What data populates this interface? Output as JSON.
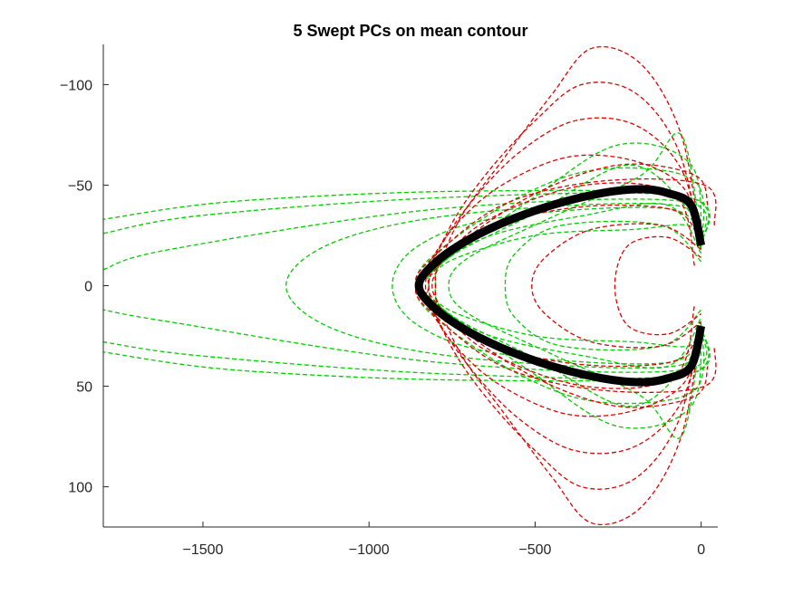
{
  "chart_data": {
    "type": "line",
    "title": "5 Swept PCs on mean contour",
    "xlabel": "",
    "ylabel": "",
    "xlim": [
      -1800,
      50
    ],
    "ylim": [
      -120,
      120
    ],
    "y_reversed": true,
    "grid": false,
    "x_ticks": [
      -1500,
      -1000,
      -500,
      0
    ],
    "x_tick_labels": [
      "−1500",
      "−1000",
      "−500",
      "0"
    ],
    "y_ticks": [
      -100,
      -50,
      0,
      50,
      100
    ],
    "y_tick_labels": [
      "−100",
      "−50",
      "0",
      "50",
      "100"
    ],
    "mean_contour": {
      "color": "#000000",
      "points": [
        [
          0,
          -20
        ],
        [
          -30,
          -40
        ],
        [
          -100,
          -46
        ],
        [
          -180,
          -48
        ],
        [
          -300,
          -46
        ],
        [
          -450,
          -40
        ],
        [
          -600,
          -31
        ],
        [
          -720,
          -21
        ],
        [
          -810,
          -10
        ],
        [
          -850,
          0
        ],
        [
          -810,
          10
        ],
        [
          -720,
          21
        ],
        [
          -600,
          31
        ],
        [
          -450,
          40
        ],
        [
          -300,
          46
        ],
        [
          -180,
          48
        ],
        [
          -100,
          46
        ],
        [
          -30,
          40
        ],
        [
          0,
          20
        ]
      ]
    },
    "series": [
      {
        "color": "#00cc00",
        "points": [
          [
            0,
            -20
          ],
          [
            -40,
            -44
          ],
          [
            -700,
            -47
          ],
          [
            -1400,
            -42
          ],
          [
            -1800,
            -33
          ]
        ]
      },
      {
        "color": "#00cc00",
        "points": [
          [
            0,
            20
          ],
          [
            -40,
            44
          ],
          [
            -700,
            47
          ],
          [
            -1400,
            42
          ],
          [
            -1800,
            33
          ]
        ]
      },
      {
        "color": "#00cc00",
        "points": [
          [
            0,
            -20
          ],
          [
            -40,
            -44
          ],
          [
            -750,
            -44
          ],
          [
            -1500,
            -35
          ],
          [
            -1800,
            -26
          ]
        ]
      },
      {
        "color": "#00cc00",
        "points": [
          [
            0,
            20
          ],
          [
            -40,
            44
          ],
          [
            -750,
            44
          ],
          [
            -1500,
            35
          ],
          [
            -1800,
            28
          ]
        ]
      },
      {
        "color": "#00cc00",
        "points": [
          [
            0,
            -22
          ],
          [
            -60,
            -42
          ],
          [
            -800,
            -38
          ],
          [
            -1600,
            -18
          ],
          [
            -1800,
            -8
          ]
        ]
      },
      {
        "color": "#00cc00",
        "points": [
          [
            0,
            22
          ],
          [
            -60,
            42
          ],
          [
            -800,
            38
          ],
          [
            -1600,
            18
          ],
          [
            -1800,
            12
          ]
        ]
      },
      {
        "color": "#00cc00",
        "points": [
          [
            0,
            -20
          ],
          [
            -80,
            -40
          ],
          [
            -700,
            -36
          ],
          [
            -1100,
            -22
          ],
          [
            -1250,
            0
          ],
          [
            -1100,
            22
          ],
          [
            -700,
            36
          ],
          [
            -80,
            40
          ],
          [
            0,
            20
          ]
        ]
      },
      {
        "color": "#00cc00",
        "points": [
          [
            0,
            -18
          ],
          [
            -90,
            -38
          ],
          [
            -600,
            -34
          ],
          [
            -850,
            -20
          ],
          [
            -930,
            0
          ],
          [
            -850,
            20
          ],
          [
            -600,
            34
          ],
          [
            -90,
            38
          ],
          [
            0,
            18
          ]
        ]
      },
      {
        "color": "#00cc00",
        "points": [
          [
            0,
            -12
          ],
          [
            -120,
            -30
          ],
          [
            -420,
            -30
          ],
          [
            -560,
            -16
          ],
          [
            -590,
            0
          ],
          [
            -560,
            16
          ],
          [
            -420,
            30
          ],
          [
            -120,
            30
          ],
          [
            0,
            12
          ]
        ]
      },
      {
        "color": "#00cc00",
        "points": [
          [
            0,
            -20
          ],
          [
            -50,
            -40
          ],
          [
            -220,
            -60
          ],
          [
            -500,
            -36
          ],
          [
            -760,
            -14
          ],
          [
            -800,
            0
          ],
          [
            -760,
            14
          ],
          [
            -500,
            36
          ],
          [
            -220,
            60
          ],
          [
            -50,
            40
          ],
          [
            0,
            20
          ]
        ]
      },
      {
        "color": "#00cc00",
        "points": [
          [
            0,
            -20
          ],
          [
            -30,
            -60
          ],
          [
            -250,
            -70
          ],
          [
            -520,
            -42
          ],
          [
            -790,
            -10
          ],
          [
            -820,
            0
          ],
          [
            -790,
            10
          ],
          [
            -520,
            42
          ],
          [
            -250,
            70
          ],
          [
            -30,
            60
          ],
          [
            0,
            20
          ]
        ]
      },
      {
        "color": "#00cc00",
        "points": [
          [
            0,
            -22
          ],
          [
            -60,
            -75
          ],
          [
            -180,
            -55
          ],
          [
            -450,
            -34
          ],
          [
            -700,
            -14
          ],
          [
            -760,
            0
          ],
          [
            -700,
            14
          ],
          [
            -450,
            34
          ],
          [
            -180,
            55
          ],
          [
            -60,
            75
          ],
          [
            0,
            22
          ]
        ]
      },
      {
        "color": "#00cc00",
        "points": [
          [
            0,
            -20
          ],
          [
            -40,
            -30
          ],
          [
            -200,
            -28
          ],
          [
            -500,
            -25
          ],
          [
            -760,
            -12
          ],
          [
            -800,
            0
          ],
          [
            -760,
            12
          ],
          [
            -500,
            25
          ],
          [
            -200,
            28
          ],
          [
            -40,
            30
          ],
          [
            0,
            20
          ]
        ]
      },
      {
        "color": "#00cc00",
        "points": [
          [
            0,
            -16
          ],
          [
            -100,
            -40
          ],
          [
            -350,
            -35
          ],
          [
            -650,
            -24
          ],
          [
            -820,
            -6
          ],
          [
            -840,
            0
          ],
          [
            -820,
            6
          ],
          [
            -650,
            24
          ],
          [
            -350,
            35
          ],
          [
            -100,
            40
          ],
          [
            0,
            16
          ]
        ]
      },
      {
        "color": "#00cc00",
        "points": [
          [
            0,
            -18
          ],
          [
            -20,
            -52
          ],
          [
            -300,
            -58
          ],
          [
            -550,
            -44
          ],
          [
            -800,
            -16
          ],
          [
            -860,
            0
          ],
          [
            -800,
            16
          ],
          [
            -550,
            44
          ],
          [
            -300,
            58
          ],
          [
            -20,
            52
          ],
          [
            0,
            18
          ]
        ]
      },
      {
        "color": "#dd0000",
        "points": [
          [
            0,
            -20
          ],
          [
            -60,
            -75
          ],
          [
            -180,
            -110
          ],
          [
            -330,
            -118
          ],
          [
            -450,
            -95
          ],
          [
            -600,
            -62
          ],
          [
            -720,
            -35
          ],
          [
            -790,
            -10
          ],
          [
            -810,
            0
          ],
          [
            -790,
            10
          ],
          [
            -720,
            35
          ],
          [
            -600,
            62
          ],
          [
            -450,
            95
          ],
          [
            -330,
            118
          ],
          [
            -180,
            110
          ],
          [
            -60,
            75
          ],
          [
            0,
            20
          ]
        ]
      },
      {
        "color": "#dd0000",
        "points": [
          [
            0,
            -20
          ],
          [
            -70,
            -68
          ],
          [
            -200,
            -96
          ],
          [
            -360,
            -100
          ],
          [
            -500,
            -82
          ],
          [
            -650,
            -55
          ],
          [
            -760,
            -28
          ],
          [
            -820,
            0
          ],
          [
            -760,
            28
          ],
          [
            -650,
            55
          ],
          [
            -500,
            82
          ],
          [
            -360,
            100
          ],
          [
            -200,
            96
          ],
          [
            -70,
            68
          ],
          [
            0,
            20
          ]
        ]
      },
      {
        "color": "#dd0000",
        "points": [
          [
            0,
            -20
          ],
          [
            -60,
            -58
          ],
          [
            -200,
            -80
          ],
          [
            -380,
            -82
          ],
          [
            -550,
            -66
          ],
          [
            -700,
            -40
          ],
          [
            -800,
            -15
          ],
          [
            -830,
            0
          ],
          [
            -800,
            15
          ],
          [
            -700,
            40
          ],
          [
            -550,
            66
          ],
          [
            -380,
            82
          ],
          [
            -200,
            80
          ],
          [
            -60,
            58
          ],
          [
            0,
            20
          ]
        ]
      },
      {
        "color": "#dd0000",
        "points": [
          [
            0,
            -20
          ],
          [
            -50,
            -48
          ],
          [
            -200,
            -62
          ],
          [
            -400,
            -64
          ],
          [
            -600,
            -50
          ],
          [
            -740,
            -30
          ],
          [
            -830,
            -8
          ],
          [
            -850,
            0
          ],
          [
            -830,
            8
          ],
          [
            -740,
            30
          ],
          [
            -600,
            50
          ],
          [
            -400,
            64
          ],
          [
            -200,
            62
          ],
          [
            -50,
            48
          ],
          [
            0,
            20
          ]
        ]
      },
      {
        "color": "#dd0000",
        "points": [
          [
            0,
            -20
          ],
          [
            -60,
            -36
          ],
          [
            -220,
            -40
          ],
          [
            -420,
            -38
          ],
          [
            -620,
            -30
          ],
          [
            -770,
            -16
          ],
          [
            -850,
            0
          ],
          [
            -770,
            16
          ],
          [
            -620,
            30
          ],
          [
            -420,
            38
          ],
          [
            -220,
            40
          ],
          [
            -60,
            36
          ],
          [
            0,
            20
          ]
        ]
      },
      {
        "color": "#dd0000",
        "points": [
          [
            0,
            -18
          ],
          [
            -120,
            -30
          ],
          [
            -330,
            -28
          ],
          [
            -470,
            -14
          ],
          [
            -510,
            0
          ],
          [
            -470,
            14
          ],
          [
            -330,
            28
          ],
          [
            -120,
            30
          ],
          [
            0,
            18
          ]
        ]
      },
      {
        "color": "#dd0000",
        "points": [
          [
            0,
            -14
          ],
          [
            -100,
            -24
          ],
          [
            -220,
            -20
          ],
          [
            -260,
            0
          ],
          [
            -220,
            20
          ],
          [
            -100,
            24
          ],
          [
            0,
            14
          ]
        ]
      },
      {
        "color": "#dd0000",
        "points": [
          [
            20,
            -40
          ],
          [
            -20,
            -55
          ],
          [
            -250,
            -60
          ],
          [
            -520,
            -44
          ],
          [
            -760,
            -16
          ],
          [
            -800,
            0
          ],
          [
            -760,
            16
          ],
          [
            -520,
            44
          ],
          [
            -250,
            60
          ],
          [
            -20,
            55
          ],
          [
            20,
            40
          ]
        ]
      },
      {
        "color": "#dd0000",
        "points": [
          [
            40,
            -30
          ],
          [
            10,
            -50
          ],
          [
            -300,
            -52
          ],
          [
            -600,
            -40
          ],
          [
            -820,
            -12
          ],
          [
            -860,
            0
          ],
          [
            -820,
            12
          ],
          [
            -600,
            40
          ],
          [
            -300,
            52
          ],
          [
            10,
            50
          ],
          [
            40,
            30
          ]
        ]
      },
      {
        "color": "#dd0000",
        "points": [
          [
            -20,
            -10
          ],
          [
            -80,
            -45
          ],
          [
            -350,
            -50
          ],
          [
            -650,
            -32
          ],
          [
            -800,
            -8
          ],
          [
            -820,
            0
          ],
          [
            -800,
            8
          ],
          [
            -650,
            32
          ],
          [
            -350,
            50
          ],
          [
            -80,
            45
          ],
          [
            -20,
            10
          ]
        ]
      }
    ]
  }
}
